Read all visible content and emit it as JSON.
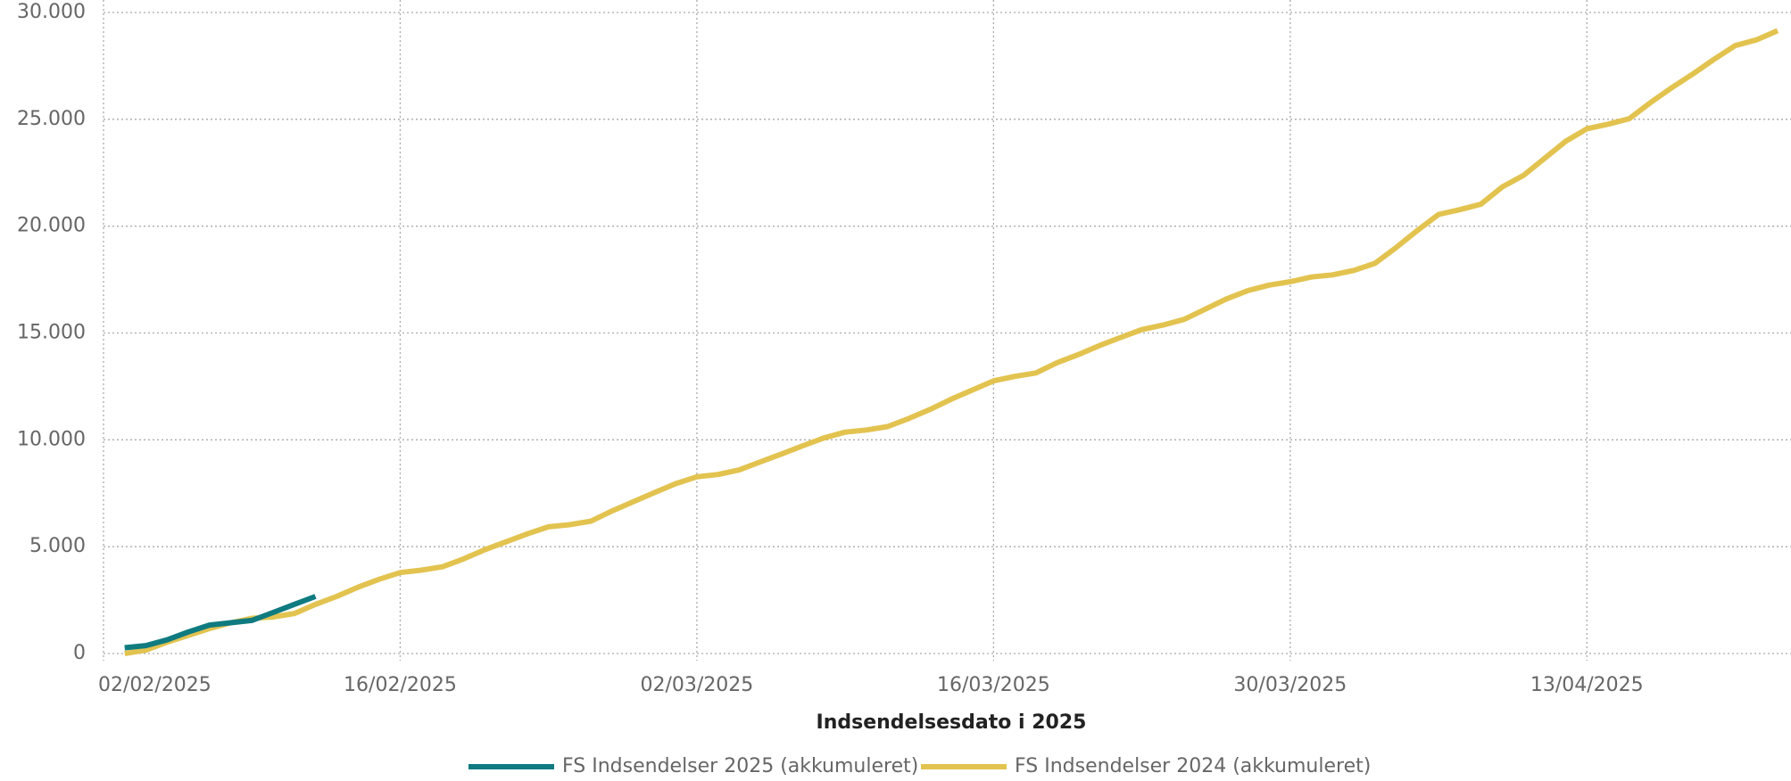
{
  "chart_data": {
    "type": "line",
    "x_label": "Indsendelsesdato i 2025",
    "xlim": [
      "2025-02-02",
      "2025-04-22"
    ],
    "xticks": [
      {
        "value": "2025-02-02",
        "label": "02/02/2025"
      },
      {
        "value": "2025-02-16",
        "label": "16/02/2025"
      },
      {
        "value": "2025-03-02",
        "label": "02/03/2025"
      },
      {
        "value": "2025-03-16",
        "label": "16/03/2025"
      },
      {
        "value": "2025-03-30",
        "label": "30/03/2025"
      },
      {
        "value": "2025-04-13",
        "label": "13/04/2025"
      }
    ],
    "ylim": [
      0,
      30000
    ],
    "yticks": [
      0,
      {
        "value": 5000,
        "label": "5.000"
      },
      {
        "value": 10000,
        "label": "10.000"
      },
      {
        "value": 15000,
        "label": "15.000"
      },
      {
        "value": 20000,
        "label": "20.000"
      },
      {
        "value": 25000,
        "label": "25.000"
      },
      {
        "value": 30000,
        "label": "30.000"
      }
    ],
    "grid": true,
    "legend": "bottom",
    "series": [
      {
        "name": "FS Indsendelser 2025 (akkumuleret)",
        "color": "#0f7b80",
        "x": [
          "2025-02-03",
          "2025-02-04",
          "2025-02-05",
          "2025-02-06",
          "2025-02-07",
          "2025-02-08",
          "2025-02-09",
          "2025-02-10",
          "2025-02-11",
          "2025-02-12"
        ],
        "values": [
          270,
          370,
          640,
          1010,
          1330,
          1440,
          1550,
          1920,
          2300,
          2670
        ]
      },
      {
        "name": "FS Indsendelser 2024 (akkumuleret)",
        "color": "#e2c34f",
        "x": [
          "2025-02-03",
          "2025-02-04",
          "2025-02-05",
          "2025-02-06",
          "2025-02-07",
          "2025-02-08",
          "2025-02-09",
          "2025-02-10",
          "2025-02-11",
          "2025-02-12",
          "2025-02-13",
          "2025-02-14",
          "2025-02-15",
          "2025-02-16",
          "2025-02-17",
          "2025-02-18",
          "2025-02-19",
          "2025-02-20",
          "2025-02-21",
          "2025-02-22",
          "2025-02-23",
          "2025-02-24",
          "2025-02-25",
          "2025-02-26",
          "2025-02-27",
          "2025-02-28",
          "2025-03-01",
          "2025-03-02",
          "2025-03-03",
          "2025-03-04",
          "2025-03-05",
          "2025-03-06",
          "2025-03-07",
          "2025-03-08",
          "2025-03-09",
          "2025-03-10",
          "2025-03-11",
          "2025-03-12",
          "2025-03-13",
          "2025-03-14",
          "2025-03-15",
          "2025-03-16",
          "2025-03-17",
          "2025-03-18",
          "2025-03-19",
          "2025-03-20",
          "2025-03-21",
          "2025-03-22",
          "2025-03-23",
          "2025-03-24",
          "2025-03-25",
          "2025-03-26",
          "2025-03-27",
          "2025-03-28",
          "2025-03-29",
          "2025-03-30",
          "2025-03-31",
          "2025-04-01",
          "2025-04-02",
          "2025-04-03",
          "2025-04-04",
          "2025-04-05",
          "2025-04-06",
          "2025-04-07",
          "2025-04-08",
          "2025-04-09",
          "2025-04-10",
          "2025-04-11",
          "2025-04-12",
          "2025-04-13",
          "2025-04-14",
          "2025-04-15",
          "2025-04-16",
          "2025-04-17",
          "2025-04-18",
          "2025-04-19",
          "2025-04-20",
          "2025-04-21",
          "2025-04-22"
        ],
        "values": [
          0,
          160,
          530,
          850,
          1170,
          1440,
          1650,
          1710,
          1870,
          2300,
          2670,
          3100,
          3470,
          3790,
          3900,
          4060,
          4430,
          4860,
          5230,
          5600,
          5930,
          6030,
          6190,
          6670,
          7100,
          7530,
          7950,
          8270,
          8380,
          8590,
          8970,
          9340,
          9720,
          10090,
          10360,
          10460,
          10620,
          11000,
          11420,
          11900,
          12330,
          12760,
          12970,
          13130,
          13610,
          13990,
          14410,
          14790,
          15160,
          15370,
          15640,
          16120,
          16600,
          16980,
          17240,
          17400,
          17620,
          17720,
          17930,
          18260,
          19000,
          19800,
          20550,
          20770,
          21030,
          21830,
          22370,
          23170,
          23970,
          24560,
          24770,
          25030,
          25780,
          26480,
          27120,
          27810,
          28450,
          28720,
          29150
        ]
      }
    ]
  }
}
